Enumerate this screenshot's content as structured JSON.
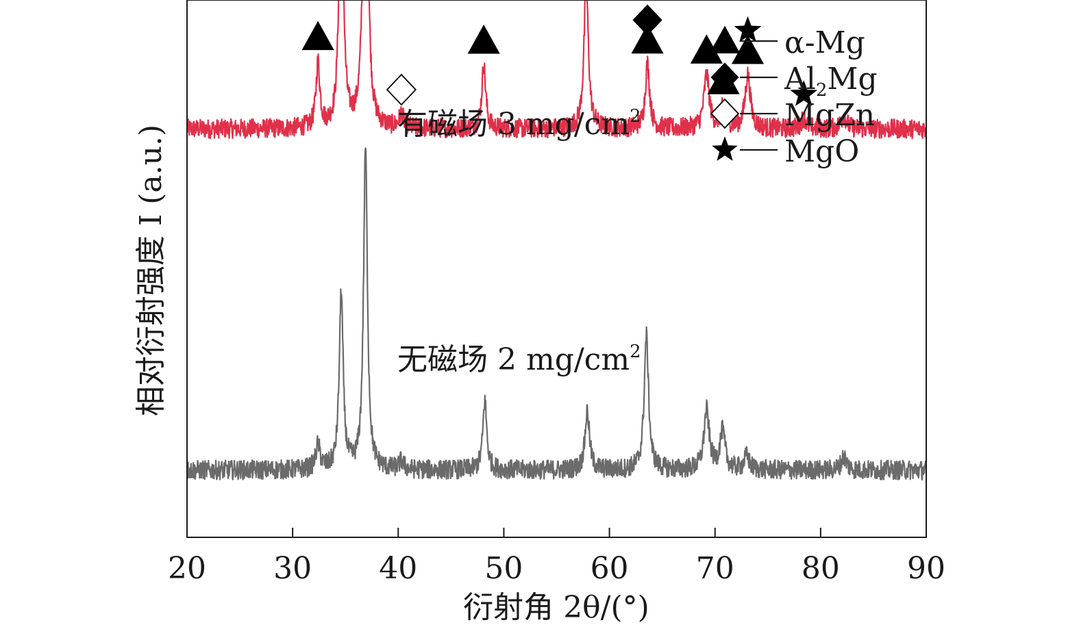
{
  "chart_data": {
    "type": "line",
    "xlabel": "衍射角 2θ/(°)",
    "ylabel": "相对衍射强度 I (a.u.)",
    "xlim": [
      20,
      90
    ],
    "xticks": [
      20,
      30,
      40,
      50,
      60,
      70,
      80,
      90
    ],
    "yticks": [],
    "grid": false,
    "legend": {
      "placement": "top-right",
      "items": [
        {
          "marker": "filled-triangle",
          "label": "α-Mg"
        },
        {
          "marker": "filled-diamond",
          "label": "Al2Mg",
          "base": "Al",
          "sub": "2",
          "rest": "Mg"
        },
        {
          "marker": "open-diamond",
          "label": "MgZn"
        },
        {
          "marker": "filled-star",
          "label": "MgO"
        }
      ]
    },
    "series": [
      {
        "name": "有磁场 3 mg/cm2",
        "label_main": "有磁场 3 mg/cm",
        "label_sup": "2",
        "color": "#e0304a",
        "baseline": 0.76,
        "noise": 0.018,
        "peaks": [
          [
            32.4,
            0.12,
            0.22
          ],
          [
            34.6,
            0.55,
            0.22
          ],
          [
            36.9,
            0.84,
            0.22
          ],
          [
            40.3,
            0.025,
            0.25
          ],
          [
            48.1,
            0.12,
            0.22
          ],
          [
            57.8,
            0.27,
            0.25
          ],
          [
            63.6,
            0.12,
            0.25
          ],
          [
            69.2,
            0.1,
            0.3
          ],
          [
            70.8,
            0.04,
            0.3
          ],
          [
            73.1,
            0.1,
            0.3
          ],
          [
            78.4,
            0.02,
            0.3
          ],
          [
            82.2,
            0.025,
            0.3
          ]
        ],
        "markers": [
          {
            "x": 32.4,
            "symbols": [
              "filled-triangle"
            ]
          },
          {
            "x": 34.6,
            "symbols": [
              "filled-triangle"
            ]
          },
          {
            "x": 36.9,
            "symbols": [
              "filled-triangle",
              "filled-diamond"
            ]
          },
          {
            "x": 40.3,
            "symbols": [
              "open-diamond"
            ]
          },
          {
            "x": 48.1,
            "symbols": [
              "filled-triangle"
            ]
          },
          {
            "x": 57.8,
            "symbols": [
              "filled-triangle"
            ]
          },
          {
            "x": 63.6,
            "symbols": [
              "filled-triangle",
              "filled-diamond"
            ]
          },
          {
            "x": 69.2,
            "symbols": [
              "filled-triangle"
            ]
          },
          {
            "x": 70.8,
            "symbols": [
              "filled-triangle"
            ]
          },
          {
            "x": 73.1,
            "symbols": [
              "filled-triangle",
              "filled-star"
            ]
          },
          {
            "x": 78.4,
            "symbols": [
              "filled-star"
            ]
          }
        ]
      },
      {
        "name": "无磁场 2 mg/cm2",
        "label_main": "无磁场 2 mg/cm",
        "label_sup": "2",
        "color": "#6b6b6b",
        "baseline": 0.125,
        "noise": 0.018,
        "peaks": [
          [
            32.4,
            0.045,
            0.25
          ],
          [
            34.6,
            0.33,
            0.22
          ],
          [
            36.9,
            0.6,
            0.22
          ],
          [
            40.3,
            0.015,
            0.25
          ],
          [
            48.2,
            0.13,
            0.22
          ],
          [
            57.9,
            0.11,
            0.25
          ],
          [
            63.5,
            0.25,
            0.25
          ],
          [
            69.2,
            0.11,
            0.3
          ],
          [
            70.7,
            0.07,
            0.3
          ],
          [
            73.0,
            0.025,
            0.3
          ],
          [
            82.2,
            0.025,
            0.3
          ]
        ],
        "markers": []
      }
    ]
  }
}
